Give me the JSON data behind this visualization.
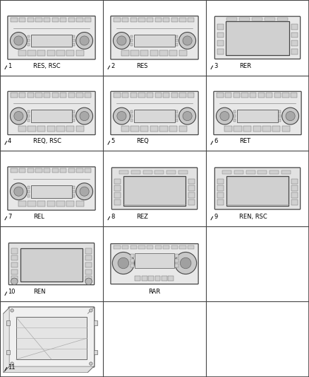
{
  "bg_color": "#ffffff",
  "grid_rows": 5,
  "grid_cols": 3,
  "items": [
    {
      "num": "1",
      "label": "RES, RSC",
      "type": "radio_std",
      "col": 0,
      "row": 0
    },
    {
      "num": "2",
      "label": "RES",
      "type": "radio_std",
      "col": 1,
      "row": 0
    },
    {
      "num": "3",
      "label": "RER",
      "type": "radio_wide",
      "col": 2,
      "row": 0
    },
    {
      "num": "4",
      "label": "REQ, RSC",
      "type": "radio_std",
      "col": 0,
      "row": 1
    },
    {
      "num": "5",
      "label": "REQ",
      "type": "radio_std",
      "col": 1,
      "row": 1
    },
    {
      "num": "6",
      "label": "RET",
      "type": "radio_std",
      "col": 2,
      "row": 1
    },
    {
      "num": "7",
      "label": "REL",
      "type": "radio_std",
      "col": 0,
      "row": 2
    },
    {
      "num": "8",
      "label": "REZ",
      "type": "radio_nav",
      "col": 1,
      "row": 2
    },
    {
      "num": "9",
      "label": "REN, RSC",
      "type": "radio_nav",
      "col": 2,
      "row": 2
    },
    {
      "num": "10",
      "label": "REN",
      "type": "radio_nav2",
      "col": 0,
      "row": 3
    },
    {
      "num": "",
      "label": "RAR",
      "type": "radio_rar",
      "col": 1,
      "row": 3
    },
    {
      "num": "",
      "label": "",
      "type": "empty",
      "col": 2,
      "row": 3
    },
    {
      "num": "11",
      "label": "",
      "type": "bracket",
      "col": 0,
      "row": 4
    },
    {
      "num": "",
      "label": "",
      "type": "empty",
      "col": 1,
      "row": 4
    },
    {
      "num": "",
      "label": "",
      "type": "empty",
      "col": 2,
      "row": 4
    }
  ]
}
